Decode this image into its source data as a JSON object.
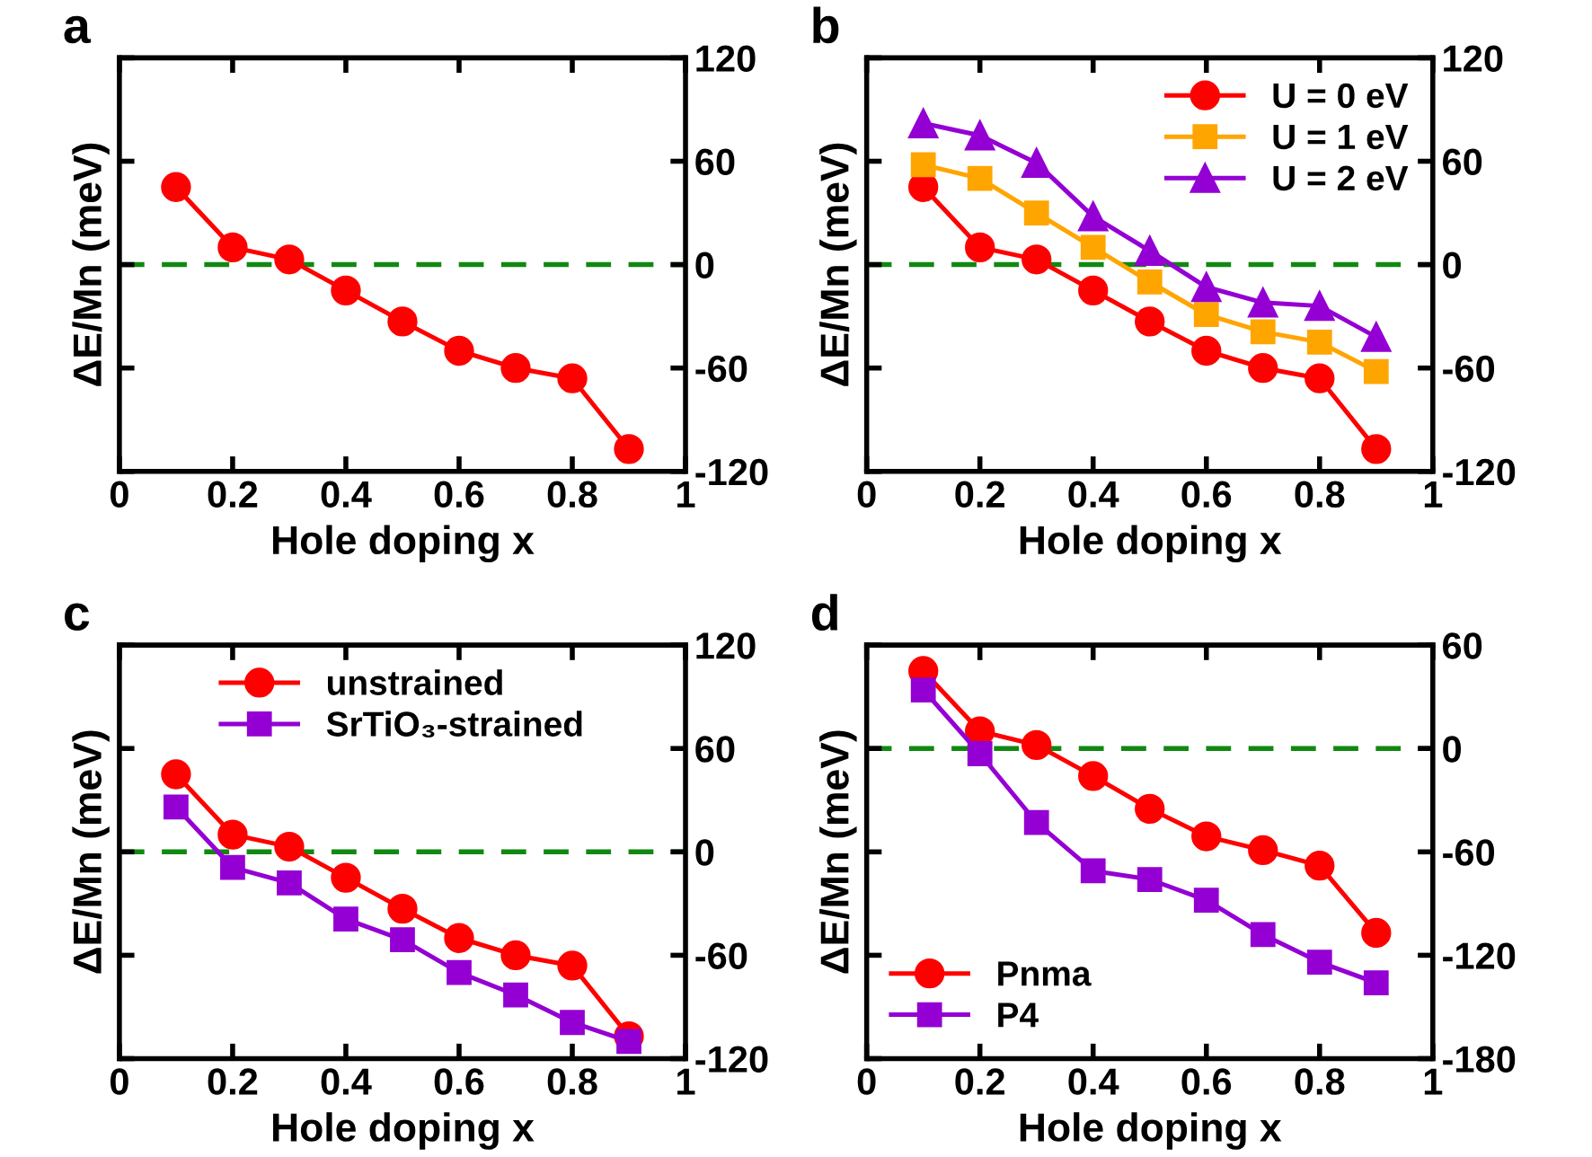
{
  "chart_data": [
    {
      "type": "line",
      "title": "a",
      "xlabel": "Hole doping x",
      "ylabel": "ΔE/Mn (meV)",
      "grid": false,
      "legend": false,
      "xlim": [
        0,
        1
      ],
      "xticks": [
        0,
        0.2,
        0.4,
        0.6,
        0.8,
        1
      ],
      "ylim": [
        -120,
        120
      ],
      "yticks": [
        -120,
        -60,
        0,
        60,
        120
      ],
      "x": [
        0.1,
        0.2,
        0.3,
        0.4,
        0.5,
        0.6,
        0.7,
        0.8,
        0.9
      ],
      "series": [
        {
          "color": "#ff0000",
          "marker": "circle",
          "values": [
            45,
            10,
            3,
            -15,
            -33,
            -50,
            -60,
            -66,
            -107
          ]
        }
      ],
      "ref_lines": [
        {
          "axis": "y",
          "value": 0,
          "color": "#118811",
          "line_style": "dashed"
        }
      ]
    },
    {
      "type": "line",
      "title": "b",
      "xlabel": "Hole doping x",
      "ylabel": "ΔE/Mn (meV)",
      "grid": false,
      "legend": "top right",
      "xlim": [
        0,
        1
      ],
      "xticks": [
        0,
        0.2,
        0.4,
        0.6,
        0.8,
        1
      ],
      "ylim": [
        -120,
        120
      ],
      "yticks": [
        -120,
        -60,
        0,
        60,
        120
      ],
      "x": [
        0.1,
        0.2,
        0.3,
        0.4,
        0.5,
        0.6,
        0.7,
        0.8,
        0.9
      ],
      "series": [
        {
          "name": "U = 0 eV",
          "color": "#ff0000",
          "marker": "circle",
          "values": [
            45,
            10,
            3,
            -15,
            -33,
            -50,
            -60,
            -66,
            -107
          ]
        },
        {
          "name": "U = 1 eV",
          "color": "#ffa500",
          "marker": "square",
          "values": [
            58,
            50,
            30,
            10,
            -10,
            -29,
            -39,
            -45,
            -62
          ]
        },
        {
          "name": "U = 2 eV",
          "color": "#9400d3",
          "marker": "triangle",
          "values": [
            82,
            75,
            59,
            28,
            8,
            -13,
            -22,
            -24,
            -42
          ]
        }
      ],
      "ref_lines": [
        {
          "axis": "y",
          "value": 0,
          "color": "#118811",
          "line_style": "dashed"
        }
      ]
    },
    {
      "type": "line",
      "title": "c",
      "xlabel": "Hole doping x",
      "ylabel": "ΔE/Mn (meV)",
      "grid": false,
      "legend": "top",
      "xlim": [
        0,
        1
      ],
      "xticks": [
        0,
        0.2,
        0.4,
        0.6,
        0.8,
        1
      ],
      "ylim": [
        -120,
        120
      ],
      "yticks": [
        -120,
        -60,
        0,
        60,
        120
      ],
      "x": [
        0.1,
        0.2,
        0.3,
        0.4,
        0.5,
        0.6,
        0.7,
        0.8,
        0.9
      ],
      "series": [
        {
          "name": "unstrained",
          "color": "#ff0000",
          "marker": "circle",
          "values": [
            45,
            10,
            3,
            -15,
            -33,
            -50,
            -60,
            -66,
            -107
          ]
        },
        {
          "name": "SrTiO₃-strained",
          "color": "#9400d3",
          "marker": "square",
          "values": [
            26,
            -9,
            -18,
            -39,
            -51,
            -70,
            -83,
            -99,
            -110
          ]
        }
      ],
      "ref_lines": [
        {
          "axis": "y",
          "value": 0,
          "color": "#118811",
          "line_style": "dashed"
        }
      ]
    },
    {
      "type": "line",
      "title": "d",
      "xlabel": "Hole doping x",
      "ylabel": "ΔE/Mn (meV)",
      "grid": false,
      "legend": "bottom left",
      "xlim": [
        0,
        1
      ],
      "xticks": [
        0,
        0.2,
        0.4,
        0.6,
        0.8,
        1
      ],
      "ylim": [
        -180,
        60
      ],
      "yticks": [
        -180,
        -120,
        -60,
        0,
        60
      ],
      "x": [
        0.1,
        0.2,
        0.3,
        0.4,
        0.5,
        0.6,
        0.7,
        0.8,
        0.9
      ],
      "series": [
        {
          "name": "Pnma",
          "color": "#ff0000",
          "marker": "circle",
          "values": [
            45,
            10,
            2,
            -16,
            -35,
            -51,
            -59,
            -68,
            -107
          ]
        },
        {
          "name": "P4",
          "color": "#9400d3",
          "marker": "square",
          "values": [
            34,
            -3,
            -43,
            -71,
            -76,
            -88,
            -108,
            -124,
            -136
          ]
        }
      ],
      "ref_lines": [
        {
          "axis": "y",
          "value": 0,
          "color": "#118811",
          "line_style": "dashed"
        }
      ]
    }
  ]
}
